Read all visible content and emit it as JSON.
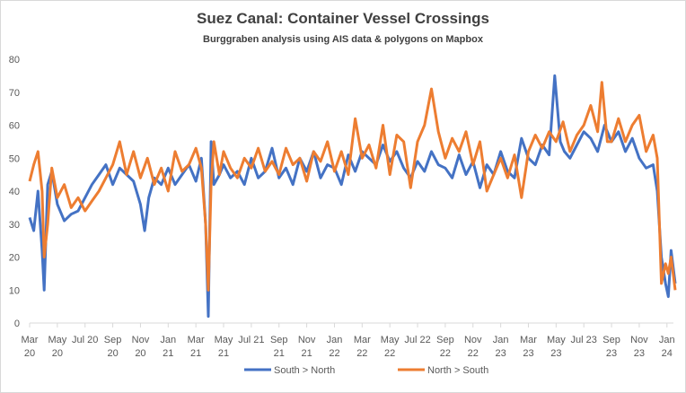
{
  "chart_data": {
    "type": "line",
    "title": "Suez Canal: Container Vessel Crossings",
    "subtitle": "Burggraben analysis  using AIS data & polygons on Mapbox",
    "xlabel": "",
    "ylabel": "",
    "x_units": "months since Mar 2020",
    "ylim": [
      0,
      80
    ],
    "yticks": [
      0,
      10,
      20,
      30,
      40,
      50,
      60,
      70,
      80
    ],
    "grid": false,
    "legend_position": "bottom",
    "xticks": [
      [
        "Mar",
        "20"
      ],
      [
        "May",
        "20"
      ],
      [
        "Jul 20"
      ],
      [
        "Sep",
        "20"
      ],
      [
        "Nov",
        "20"
      ],
      [
        "Jan",
        "21"
      ],
      [
        "Mar",
        "21"
      ],
      [
        "May",
        "21"
      ],
      [
        "Jul 21"
      ],
      [
        "Sep",
        "21"
      ],
      [
        "Nov",
        "21"
      ],
      [
        "Jan",
        "22"
      ],
      [
        "Mar",
        "22"
      ],
      [
        "May",
        "22"
      ],
      [
        "Jul 22"
      ],
      [
        "Sep",
        "22"
      ],
      [
        "Nov",
        "22"
      ],
      [
        "Jan",
        "23"
      ],
      [
        "Mar",
        "23"
      ],
      [
        "May",
        "23"
      ],
      [
        "Jul 23"
      ],
      [
        "Sep",
        "23"
      ],
      [
        "Nov",
        "23"
      ],
      [
        "Jan",
        "24"
      ]
    ],
    "series": [
      {
        "name": "South > North",
        "color": "#4472C4",
        "points": [
          [
            0,
            32
          ],
          [
            0.3,
            28
          ],
          [
            0.6,
            40
          ],
          [
            0.9,
            22
          ],
          [
            1.05,
            10
          ],
          [
            1.3,
            42
          ],
          [
            1.6,
            46
          ],
          [
            2,
            36
          ],
          [
            2.5,
            31
          ],
          [
            3,
            33
          ],
          [
            3.5,
            34
          ],
          [
            4,
            38
          ],
          [
            4.5,
            42
          ],
          [
            5,
            45
          ],
          [
            5.5,
            48
          ],
          [
            6,
            42
          ],
          [
            6.5,
            47
          ],
          [
            7,
            45
          ],
          [
            7.5,
            43
          ],
          [
            8,
            36
          ],
          [
            8.3,
            28
          ],
          [
            8.6,
            38
          ],
          [
            9,
            44
          ],
          [
            9.5,
            42
          ],
          [
            10,
            47
          ],
          [
            10.5,
            42
          ],
          [
            11,
            45
          ],
          [
            11.5,
            48
          ],
          [
            12,
            43
          ],
          [
            12.4,
            50
          ],
          [
            12.7,
            30
          ],
          [
            12.9,
            2
          ],
          [
            13.1,
            55
          ],
          [
            13.3,
            42
          ],
          [
            13.7,
            45
          ],
          [
            14,
            48
          ],
          [
            14.5,
            44
          ],
          [
            15,
            46
          ],
          [
            15.5,
            42
          ],
          [
            16,
            50
          ],
          [
            16.5,
            44
          ],
          [
            17,
            46
          ],
          [
            17.5,
            53
          ],
          [
            18,
            44
          ],
          [
            18.5,
            47
          ],
          [
            19,
            42
          ],
          [
            19.5,
            50
          ],
          [
            20,
            46
          ],
          [
            20.5,
            52
          ],
          [
            21,
            44
          ],
          [
            21.5,
            48
          ],
          [
            22,
            47
          ],
          [
            22.5,
            42
          ],
          [
            23,
            51
          ],
          [
            23.5,
            46
          ],
          [
            24,
            52
          ],
          [
            24.5,
            50
          ],
          [
            25,
            48
          ],
          [
            25.5,
            54
          ],
          [
            26,
            49
          ],
          [
            26.5,
            52
          ],
          [
            27,
            47
          ],
          [
            27.5,
            44
          ],
          [
            28,
            49
          ],
          [
            28.5,
            46
          ],
          [
            29,
            52
          ],
          [
            29.5,
            48
          ],
          [
            30,
            47
          ],
          [
            30.5,
            44
          ],
          [
            31,
            51
          ],
          [
            31.5,
            45
          ],
          [
            32,
            49
          ],
          [
            32.5,
            41
          ],
          [
            33,
            48
          ],
          [
            33.5,
            45
          ],
          [
            34,
            52
          ],
          [
            34.5,
            46
          ],
          [
            35,
            44
          ],
          [
            35.5,
            56
          ],
          [
            36,
            50
          ],
          [
            36.5,
            48
          ],
          [
            37,
            54
          ],
          [
            37.5,
            51
          ],
          [
            37.9,
            75
          ],
          [
            38.3,
            55
          ],
          [
            38.6,
            52
          ],
          [
            39,
            50
          ],
          [
            39.5,
            54
          ],
          [
            40,
            58
          ],
          [
            40.5,
            56
          ],
          [
            41,
            52
          ],
          [
            41.5,
            60
          ],
          [
            42,
            55
          ],
          [
            42.5,
            58
          ],
          [
            43,
            52
          ],
          [
            43.5,
            56
          ],
          [
            44,
            50
          ],
          [
            44.5,
            47
          ],
          [
            45,
            48
          ],
          [
            45.3,
            40
          ],
          [
            45.6,
            20
          ],
          [
            45.9,
            12
          ],
          [
            46.1,
            8
          ],
          [
            46.3,
            22
          ],
          [
            46.6,
            12
          ]
        ]
      },
      {
        "name": "North > South",
        "color": "#ED7D31",
        "points": [
          [
            0,
            43
          ],
          [
            0.3,
            48
          ],
          [
            0.6,
            52
          ],
          [
            0.9,
            40
          ],
          [
            1.05,
            20
          ],
          [
            1.3,
            30
          ],
          [
            1.6,
            47
          ],
          [
            2,
            38
          ],
          [
            2.5,
            42
          ],
          [
            3,
            35
          ],
          [
            3.5,
            38
          ],
          [
            4,
            34
          ],
          [
            4.5,
            37
          ],
          [
            5,
            40
          ],
          [
            5.5,
            44
          ],
          [
            6,
            48
          ],
          [
            6.5,
            55
          ],
          [
            7,
            45
          ],
          [
            7.5,
            52
          ],
          [
            8,
            44
          ],
          [
            8.5,
            50
          ],
          [
            9,
            42
          ],
          [
            9.5,
            47
          ],
          [
            10,
            40
          ],
          [
            10.5,
            52
          ],
          [
            11,
            46
          ],
          [
            11.5,
            48
          ],
          [
            12,
            53
          ],
          [
            12.4,
            47
          ],
          [
            12.7,
            30
          ],
          [
            12.9,
            10
          ],
          [
            13.1,
            42
          ],
          [
            13.3,
            55
          ],
          [
            13.7,
            45
          ],
          [
            14,
            52
          ],
          [
            14.5,
            47
          ],
          [
            15,
            44
          ],
          [
            15.5,
            50
          ],
          [
            16,
            47
          ],
          [
            16.5,
            53
          ],
          [
            17,
            46
          ],
          [
            17.5,
            49
          ],
          [
            18,
            45
          ],
          [
            18.5,
            53
          ],
          [
            19,
            48
          ],
          [
            19.5,
            50
          ],
          [
            20,
            43
          ],
          [
            20.5,
            52
          ],
          [
            21,
            49
          ],
          [
            21.5,
            55
          ],
          [
            22,
            46
          ],
          [
            22.5,
            52
          ],
          [
            23,
            45
          ],
          [
            23.5,
            62
          ],
          [
            24,
            50
          ],
          [
            24.5,
            54
          ],
          [
            25,
            47
          ],
          [
            25.5,
            60
          ],
          [
            26,
            45
          ],
          [
            26.5,
            57
          ],
          [
            27,
            55
          ],
          [
            27.5,
            41
          ],
          [
            28,
            55
          ],
          [
            28.5,
            60
          ],
          [
            29,
            71
          ],
          [
            29.5,
            58
          ],
          [
            30,
            50
          ],
          [
            30.5,
            56
          ],
          [
            31,
            52
          ],
          [
            31.5,
            58
          ],
          [
            32,
            48
          ],
          [
            32.5,
            55
          ],
          [
            33,
            40
          ],
          [
            33.5,
            45
          ],
          [
            34,
            50
          ],
          [
            34.5,
            44
          ],
          [
            35,
            51
          ],
          [
            35.5,
            38
          ],
          [
            36,
            52
          ],
          [
            36.5,
            57
          ],
          [
            37,
            53
          ],
          [
            37.5,
            58
          ],
          [
            38,
            55
          ],
          [
            38.5,
            61
          ],
          [
            39,
            52
          ],
          [
            39.5,
            57
          ],
          [
            40,
            60
          ],
          [
            40.5,
            66
          ],
          [
            41,
            58
          ],
          [
            41.3,
            73
          ],
          [
            41.7,
            55
          ],
          [
            42,
            55
          ],
          [
            42.5,
            62
          ],
          [
            43,
            55
          ],
          [
            43.5,
            60
          ],
          [
            44,
            63
          ],
          [
            44.5,
            52
          ],
          [
            45,
            57
          ],
          [
            45.3,
            50
          ],
          [
            45.6,
            12
          ],
          [
            45.9,
            18
          ],
          [
            46.1,
            15
          ],
          [
            46.3,
            20
          ],
          [
            46.6,
            10
          ]
        ]
      }
    ]
  }
}
